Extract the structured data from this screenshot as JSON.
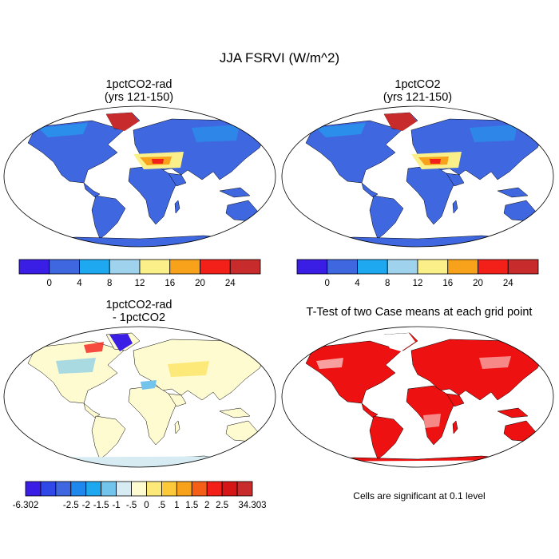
{
  "title": "JJA FSRVI (W/m^2)",
  "panels": [
    {
      "id": "a",
      "title_line1": "1pctCO2-rad",
      "title_line2": "(yrs 121-150)"
    },
    {
      "id": "b",
      "title_line1": "1pctCO2",
      "title_line2": "(yrs 121-150)"
    },
    {
      "id": "c",
      "title_line1": "1pctCO2-rad",
      "title_line2": "- 1pctCO2"
    },
    {
      "id": "d",
      "title_line1": "T-Test of two Case means at each grid point"
    }
  ],
  "colorbar_main": {
    "colors": [
      "#3a1ee6",
      "#3f67e0",
      "#1ea8f0",
      "#9fd2ec",
      "#fbef8a",
      "#f7a21a",
      "#f3201a",
      "#c82b2b"
    ],
    "tick_labels": [
      "0",
      "4",
      "8",
      "12",
      "16",
      "20",
      "24"
    ]
  },
  "colorbar_diff": {
    "colors": [
      "#3a1ee6",
      "#3148e8",
      "#3f67e0",
      "#1e88ec",
      "#1ea8f0",
      "#72c4ec",
      "#d6ecf2",
      "#fffbd0",
      "#fde87a",
      "#fbc93a",
      "#f7a21a",
      "#f55e16",
      "#f3201a",
      "#d61616",
      "#c82b2b"
    ],
    "tick_labels": [
      "-6.302",
      "-2.5",
      "-2",
      "-1.5",
      "-1",
      "-.5",
      "0",
      ".5",
      "1",
      "1.5",
      "2",
      "2.5",
      "34.303"
    ]
  },
  "significance_note": "Cells are significant at 0.1 level"
}
